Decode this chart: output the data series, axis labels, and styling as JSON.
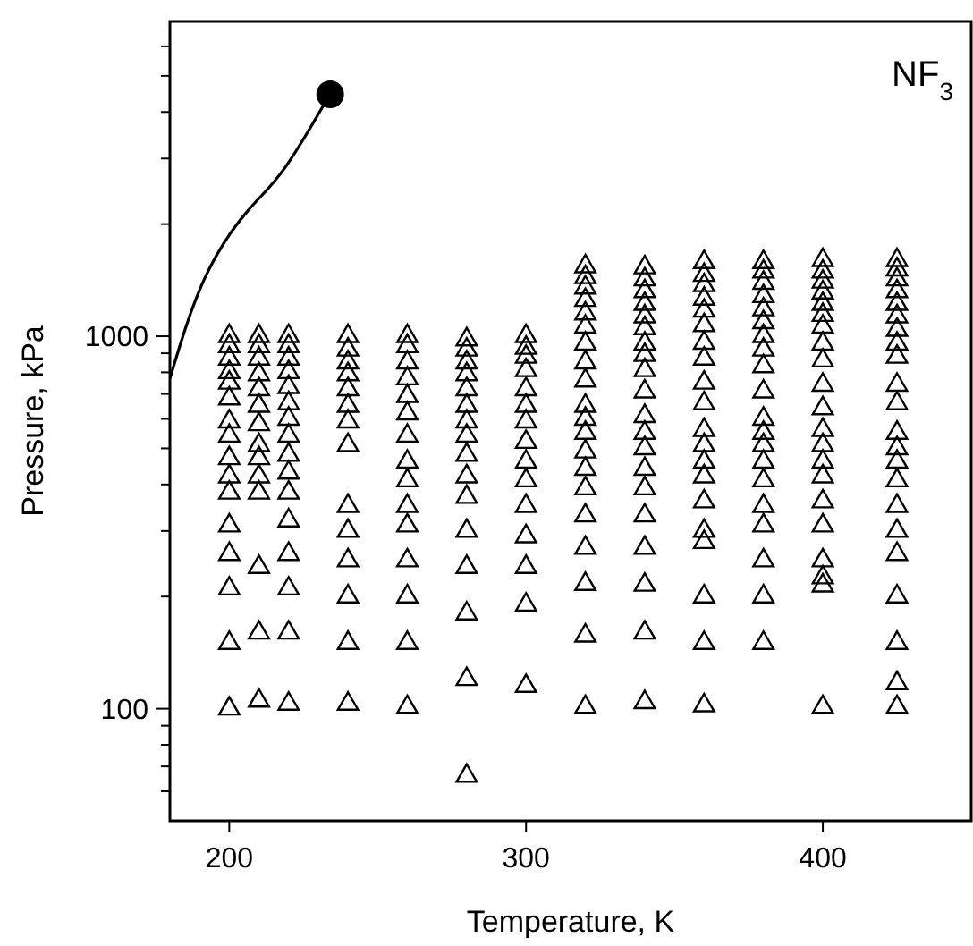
{
  "chart_data": {
    "type": "scatter",
    "xlabel": "Temperature, K",
    "ylabel": "Pressure, kPa",
    "annotations": [
      "NF$_{3}$"
    ],
    "log": "y",
    "grid": false,
    "xlim": [
      180,
      450
    ],
    "xticks": [
      200,
      300,
      400
    ],
    "ylim": [
      50,
      7000
    ],
    "yticks": [
      {
        "value": 60,
        "label": null
      },
      {
        "value": 70,
        "label": null
      },
      {
        "value": 80,
        "label": null
      },
      {
        "value": 90,
        "label": null
      },
      100,
      {
        "value": 200,
        "label": null
      },
      {
        "value": 300,
        "label": null
      },
      {
        "value": 400,
        "label": null
      },
      {
        "value": 500,
        "label": null
      },
      {
        "value": 600,
        "label": null
      },
      {
        "value": 700,
        "label": null
      },
      {
        "value": 800,
        "label": null
      },
      {
        "value": 900,
        "label": null
      },
      1000,
      {
        "value": 2000,
        "label": null
      },
      {
        "value": 3000,
        "label": null
      },
      {
        "value": 4000,
        "label": null
      },
      {
        "value": 5000,
        "label": null
      },
      {
        "value": 6000,
        "label": null
      }
    ],
    "series": [
      {
        "type": "line",
        "color": "#000000",
        "marker": "none",
        "line_style": "solid",
        "x": [
          180,
          191.7,
          206.2,
          218.7,
          232.2,
          234
        ],
        "values": [
          770,
          1430,
          2170,
          2830,
          4230,
          4460
        ]
      },
      {
        "type": "scatter",
        "color": "#000000",
        "marker": "circle",
        "x": [
          234
        ],
        "values": [
          4460
        ]
      },
      {
        "color": "#000000",
        "marker": "triangle",
        "x": [
          200,
          200,
          200,
          200,
          200,
          200,
          200,
          200,
          200,
          200,
          200,
          200,
          200,
          200,
          200,
          200,
          210,
          210,
          210,
          210,
          210,
          210,
          210,
          210,
          210,
          210,
          210,
          210,
          210,
          210,
          220,
          220,
          220,
          220,
          220,
          220,
          220,
          220,
          220,
          220,
          220,
          220,
          220,
          220,
          220,
          220,
          240,
          240,
          240,
          240,
          240,
          240,
          240,
          240,
          240,
          240,
          240,
          240,
          240,
          240,
          260,
          260,
          260,
          260,
          260,
          260,
          260,
          260,
          260,
          260,
          260,
          260,
          260,
          260,
          260,
          280,
          280,
          280,
          280,
          280,
          280,
          280,
          280,
          280,
          280,
          280,
          280,
          280,
          280,
          280,
          280,
          300,
          300,
          300,
          300,
          300,
          300,
          300,
          300,
          300,
          300,
          300,
          300,
          300,
          300,
          300,
          320,
          320,
          320,
          320,
          320,
          320,
          320,
          320,
          320,
          320,
          320,
          320,
          320,
          320,
          320,
          320,
          320,
          320,
          320,
          320,
          340,
          340,
          340,
          340,
          340,
          340,
          340,
          340,
          340,
          340,
          340,
          340,
          340,
          340,
          340,
          340,
          340,
          340,
          340,
          340,
          360,
          360,
          360,
          360,
          360,
          360,
          360,
          360,
          360,
          360,
          360,
          360,
          360,
          360,
          360,
          360,
          360,
          360,
          360,
          360,
          380,
          380,
          380,
          380,
          380,
          380,
          380,
          380,
          380,
          380,
          380,
          380,
          380,
          380,
          380,
          380,
          380,
          380,
          380,
          380,
          400,
          400,
          400,
          400,
          400,
          400,
          400,
          400,
          400,
          400,
          400,
          400,
          400,
          400,
          400,
          400,
          400,
          400,
          400,
          400,
          400,
          425,
          425,
          425,
          425,
          425,
          425,
          425,
          425,
          425,
          425,
          425,
          425,
          425,
          425,
          425,
          425,
          425,
          425,
          425,
          425,
          425,
          425
        ],
        "values": [
          1000,
          940,
          870,
          800,
          750,
          680,
          590,
          540,
          470,
          420,
          380,
          310,
          260,
          210,
          150,
          100,
          1000,
          940,
          870,
          790,
          720,
          650,
          580,
          510,
          470,
          420,
          380,
          240,
          160,
          105,
          1000,
          940,
          870,
          800,
          730,
          660,
          600,
          540,
          480,
          430,
          380,
          320,
          260,
          210,
          160,
          103,
          1000,
          920,
          850,
          790,
          720,
          650,
          590,
          510,
          350,
          300,
          250,
          200,
          150,
          103,
          1000,
          940,
          850,
          770,
          690,
          620,
          540,
          460,
          410,
          350,
          310,
          250,
          200,
          150,
          101,
          980,
          920,
          850,
          790,
          720,
          650,
          590,
          540,
          480,
          420,
          370,
          300,
          240,
          180,
          120,
          66,
          1000,
          930,
          880,
          810,
          720,
          650,
          590,
          520,
          460,
          410,
          350,
          290,
          240,
          190,
          115,
          1540,
          1440,
          1350,
          1250,
          1150,
          1060,
          955,
          850,
          760,
          650,
          600,
          550,
          490,
          440,
          390,
          330,
          270,
          216,
          157,
          101,
          1530,
          1420,
          1320,
          1220,
          1130,
          1050,
          955,
          890,
          810,
          710,
          610,
          550,
          500,
          440,
          390,
          330,
          270,
          215,
          160,
          104,
          1580,
          1460,
          1370,
          1260,
          1170,
          1070,
          960,
          870,
          750,
          660,
          560,
          510,
          460,
          420,
          360,
          300,
          280,
          200,
          150,
          102,
          1580,
          1490,
          1390,
          1280,
          1180,
          1090,
          1000,
          920,
          830,
          710,
          600,
          550,
          510,
          460,
          410,
          350,
          310,
          250,
          200,
          150,
          1600,
          1490,
          1400,
          1310,
          1220,
          1140,
          1060,
          955,
          860,
          740,
          640,
          560,
          510,
          460,
          420,
          360,
          310,
          250,
          225,
          214,
          101,
          1600,
          1510,
          1420,
          1320,
          1220,
          1130,
          1040,
          955,
          880,
          740,
          660,
          550,
          500,
          460,
          410,
          350,
          300,
          260,
          200,
          150,
          117,
          101
        ]
      }
    ]
  }
}
